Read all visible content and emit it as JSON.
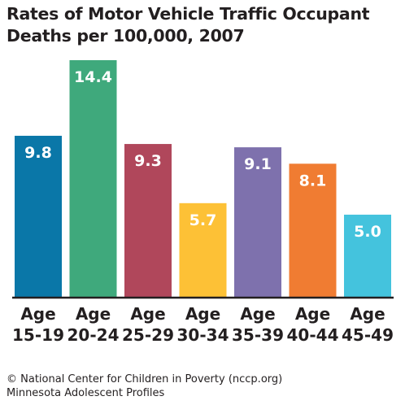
{
  "title_lines": [
    "Rates of Motor Vehicle Traffic Occupant",
    "Deaths per 100,000, 2007"
  ],
  "footer_lines": [
    "© National Center for Children in Poverty (nccp.org)",
    "Minnesota Adolescent Profiles"
  ],
  "chart_data": {
    "type": "bar",
    "title": "Rates of Motor Vehicle Traffic Occupant Deaths per 100,000, 2007",
    "categories": [
      [
        "Age",
        "15-19"
      ],
      [
        "Age",
        "20-24"
      ],
      [
        "Age",
        "25-29"
      ],
      [
        "Age",
        "30-34"
      ],
      [
        "Age",
        "35-39"
      ],
      [
        "Age",
        "40-44"
      ],
      [
        "Age",
        "45-49"
      ]
    ],
    "values": [
      9.8,
      14.4,
      9.3,
      5.7,
      9.1,
      8.1,
      5.0
    ],
    "value_labels": [
      "9.8",
      "14.4",
      "9.3",
      "5.7",
      "9.1",
      "8.1",
      "5.0"
    ],
    "colors": [
      "#0a77a8",
      "#3fa97c",
      "#b0475b",
      "#fdc136",
      "#7e71ad",
      "#f07c32",
      "#44c3dd"
    ],
    "ylim": [
      0,
      14.4
    ],
    "xlabel": "",
    "ylabel": "",
    "grid": false,
    "legend": "none"
  }
}
